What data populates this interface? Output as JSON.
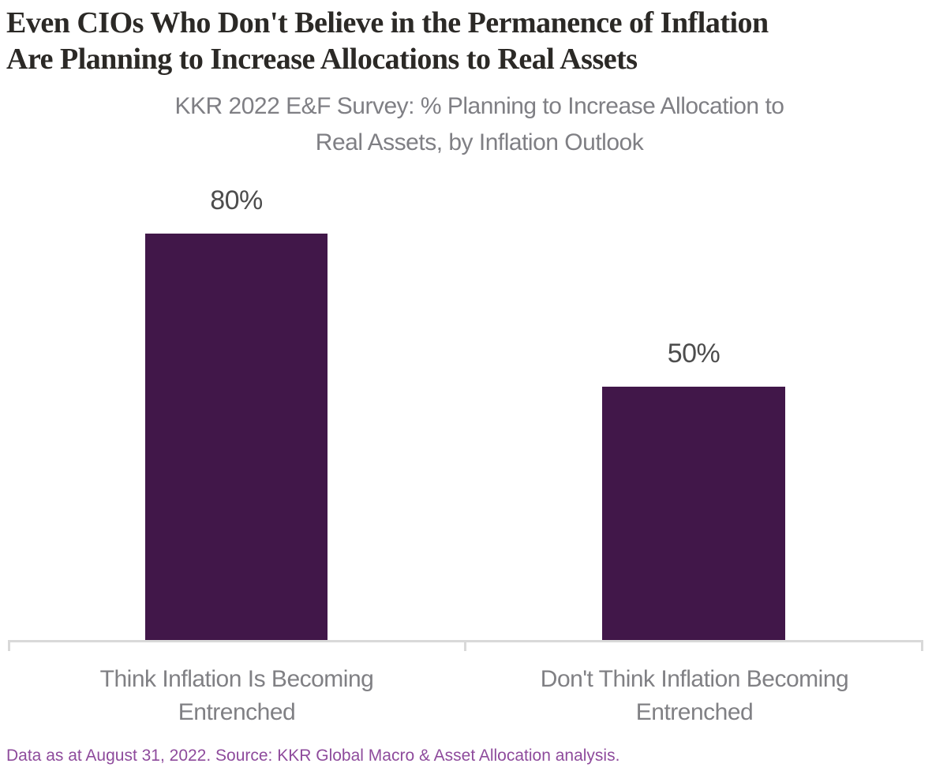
{
  "page": {
    "title_lines": [
      "Even CIOs Who Don't Believe in the Permanence of Inflation",
      "Are Planning to Increase Allocations to Real Assets"
    ],
    "subtitle_lines": [
      "KKR 2022 E&F Survey: % Planning to Increase Allocation to",
      "Real Assets, by Inflation Outlook"
    ],
    "footnote": "Data as at August 31, 2022. Source: KKR Global Macro & Asset Allocation analysis."
  },
  "chart_data": {
    "type": "bar",
    "title": "Even CIOs Who Don't Believe in the Permanence of Inflation Are Planning to Increase Allocations to Real Assets",
    "subtitle": "KKR 2022 E&F Survey: % Planning to Increase Allocation to Real Assets, by Inflation Outlook",
    "categories": [
      "Think Inflation Is Becoming Entrenched",
      "Don't Think Inflation Becoming Entrenched"
    ],
    "category_lines": [
      [
        "Think Inflation Is Becoming",
        "Entrenched"
      ],
      [
        "Don't Think Inflation Becoming",
        "Entrenched"
      ]
    ],
    "values": [
      80,
      50
    ],
    "data_labels": [
      "80%",
      "50%"
    ],
    "unit": "%",
    "xlabel": "",
    "ylabel": "",
    "ylim": [
      0,
      100
    ],
    "grid": false,
    "legend": "none",
    "source_note": "Data as at August 31, 2022. Source: KKR Global Macro & Asset Allocation analysis.",
    "colors": {
      "bar": "#411749",
      "title_text": "#2b2926",
      "subtitle_text": "#7f7f84",
      "value_label_text": "#4d4d4d",
      "category_label_text": "#808084",
      "axis_line": "#d9d9d9",
      "footnote_text": "#8e4b9c"
    }
  }
}
